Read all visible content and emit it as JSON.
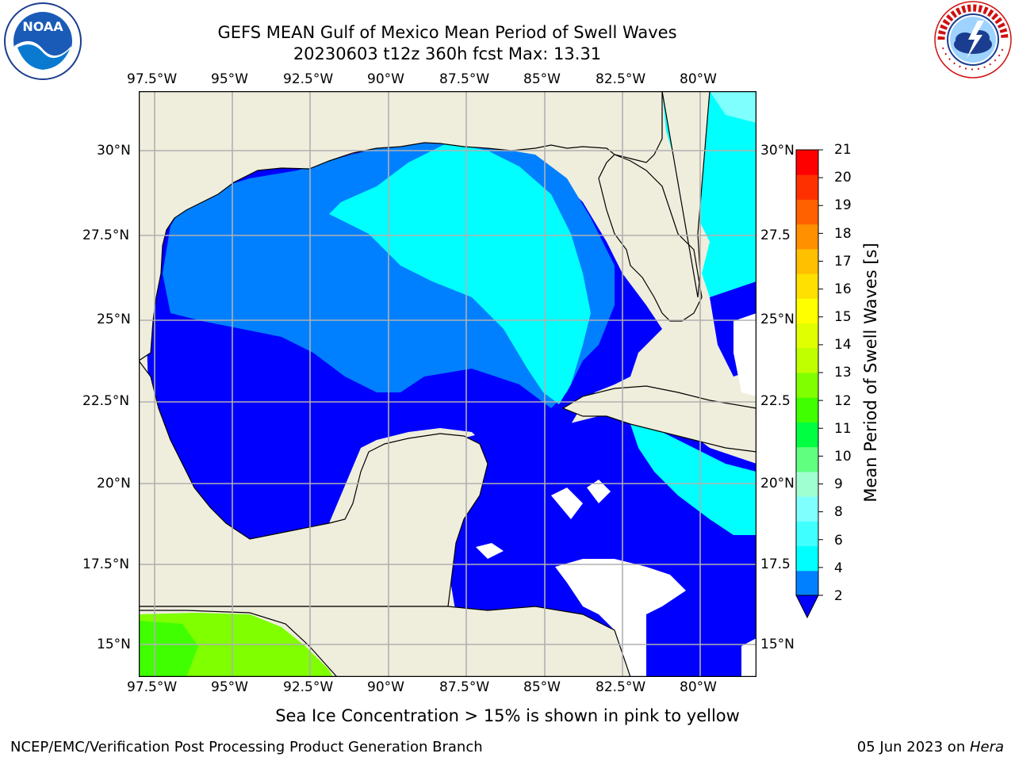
{
  "header": {
    "title_line1": "GEFS MEAN Gulf of Mexico Mean Period of Swell Waves",
    "title_line2": "20230603 t12z 360h fcst   Max: 13.31"
  },
  "logos": {
    "left": {
      "name": "noaa-logo",
      "text": "NOAA",
      "ring_text": "NATIONAL OCEANIC AND ATMOSPHERIC ADMINISTRATION · U.S. DEPARTMENT OF COMMERCE"
    },
    "right": {
      "name": "nws-logo",
      "ring_text": "NATIONAL WEATHER SERVICE"
    }
  },
  "map": {
    "lon_range": [
      -98.5,
      -78.5
    ],
    "lat_range": [
      14.0,
      32.0
    ],
    "lon_ticks": [
      "97.5°W",
      "95°W",
      "92.5°W",
      "90°W",
      "87.5°W",
      "85°W",
      "82.5°W",
      "80°W"
    ],
    "lat_ticks": [
      "30°N",
      "27.5°N",
      "25°N",
      "22.5°N",
      "20°N",
      "17.5°N",
      "15°N"
    ],
    "right_lat_ticks": [
      "30°N",
      "27.5",
      "25°N",
      "22.5",
      "20°N",
      "17.5",
      "15°N"
    ],
    "colors": {
      "land": "#efeddc",
      "ocean_dark": "#0000ff",
      "ocean_mid": "#0080ff",
      "ocean_light": "#00ffff",
      "pacific": "#7fff00",
      "grid": "#b0b0b0"
    }
  },
  "colorbar": {
    "label": "Mean Period of Swell Waves [s]",
    "ticks": [
      "21",
      "20",
      "19",
      "18",
      "17",
      "16",
      "15",
      "14",
      "13",
      "12",
      "11",
      "10",
      "9",
      "8",
      "6",
      "4",
      "2"
    ],
    "colors": [
      "#0080ff",
      "#00ffff",
      "#40ffff",
      "#80ffff",
      "#a0ffd0",
      "#60ff80",
      "#00ff40",
      "#40ff00",
      "#80ff00",
      "#c0ff00",
      "#e0ff00",
      "#ffff00",
      "#ffe000",
      "#ffc000",
      "#ff9000",
      "#ff6000",
      "#ff3000",
      "#ff0000"
    ],
    "extend_color": "#0000ff"
  },
  "caption": "Sea Ice Concentration > 15% is shown in pink to yellow",
  "footer": {
    "left": "NCEP/EMC/Verification Post Processing Product Generation Branch",
    "right_date": "05 Jun 2023 on ",
    "right_machine": "Hera"
  }
}
